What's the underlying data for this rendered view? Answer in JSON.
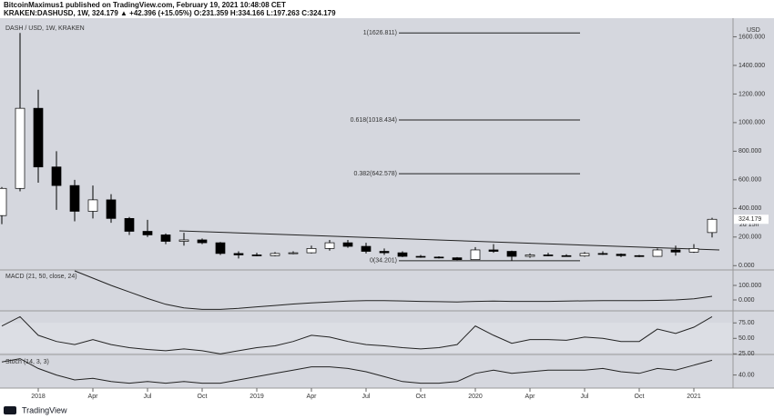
{
  "header": {
    "publisher": "BitcoinMaximus1 published on TradingView.com, February 19, 2021 10:48:08 CET",
    "symbol_line": "KRAKEN:DASHUSD, 1W, 324.179 ▲ +42.396 (+15.05%) O:231.359 H:334.166 L:197.263 C:324.179"
  },
  "footer": {
    "brand": "TradingView"
  },
  "chart_data": [
    {
      "type": "candlestick",
      "title": "DASH / USD, 1W, KRAKEN",
      "currency": "USD",
      "countdown": "2d 15h",
      "x": [
        "2017-11",
        "2017-12",
        "2018-01",
        "2018-02",
        "2018-03",
        "2018-04",
        "2018-05",
        "2018-06",
        "2018-07",
        "2018-08",
        "2018-09",
        "2018-10",
        "2018-11",
        "2018-12",
        "2019-01",
        "2019-02",
        "2019-03",
        "2019-04",
        "2019-05",
        "2019-06",
        "2019-07",
        "2019-08",
        "2019-09",
        "2019-10",
        "2019-11",
        "2019-12",
        "2020-01",
        "2020-02",
        "2020-03",
        "2020-04",
        "2020-05",
        "2020-06",
        "2020-07",
        "2020-08",
        "2020-09",
        "2020-10",
        "2020-11",
        "2020-12",
        "2021-01",
        "2021-02"
      ],
      "open": [
        350,
        540,
        1100,
        690,
        560,
        380,
        460,
        330,
        240,
        215,
        170,
        180,
        160,
        85,
        75,
        70,
        85,
        90,
        120,
        160,
        135,
        100,
        90,
        65,
        60,
        55,
        42,
        110,
        100,
        65,
        75,
        70,
        68,
        85,
        80,
        70,
        65,
        110,
        95,
        231.359
      ],
      "high": [
        550,
        1627,
        1230,
        800,
        600,
        560,
        500,
        340,
        320,
        225,
        230,
        190,
        165,
        100,
        90,
        95,
        100,
        140,
        180,
        180,
        160,
        120,
        100,
        75,
        65,
        60,
        130,
        150,
        105,
        85,
        90,
        80,
        95,
        100,
        85,
        75,
        120,
        140,
        150,
        334.166
      ],
      "low": [
        290,
        520,
        580,
        390,
        310,
        330,
        300,
        215,
        200,
        150,
        140,
        150,
        75,
        50,
        65,
        65,
        80,
        85,
        105,
        125,
        85,
        75,
        60,
        55,
        50,
        38,
        40,
        90,
        34,
        55,
        65,
        65,
        62,
        75,
        60,
        60,
        62,
        70,
        90,
        197.263
      ],
      "close": [
        540,
        1100,
        690,
        560,
        380,
        460,
        330,
        240,
        215,
        170,
        180,
        160,
        85,
        75,
        70,
        85,
        90,
        120,
        160,
        135,
        100,
        90,
        65,
        60,
        55,
        42,
        110,
        100,
        65,
        75,
        70,
        68,
        85,
        80,
        70,
        65,
        110,
        95,
        120,
        324.179
      ],
      "up_color": "#ffffff",
      "down_color": "#000000",
      "ylim": [
        -30,
        1730
      ],
      "yticks": [
        {
          "value": 0,
          "label": "0.000"
        },
        {
          "value": 200,
          "label": "200.000"
        },
        {
          "value": 400,
          "label": "400.000"
        },
        {
          "value": 600,
          "label": "600.000"
        },
        {
          "value": 800,
          "label": "800.000"
        },
        {
          "value": 1000,
          "label": "1000.000"
        },
        {
          "value": 1200,
          "label": "1200.000"
        },
        {
          "value": 1400,
          "label": "1400.000"
        },
        {
          "value": 1600,
          "label": "1600.000"
        }
      ],
      "xticks": [
        {
          "value": "2018-01",
          "label": "2018"
        },
        {
          "value": "2018-04",
          "label": "Apr"
        },
        {
          "value": "2018-07",
          "label": "Jul"
        },
        {
          "value": "2018-10",
          "label": "Oct"
        },
        {
          "value": "2019-01",
          "label": "2019"
        },
        {
          "value": "2019-04",
          "label": "Apr"
        },
        {
          "value": "2019-07",
          "label": "Jul"
        },
        {
          "value": "2019-10",
          "label": "Oct"
        },
        {
          "value": "2020-01",
          "label": "2020"
        },
        {
          "value": "2020-04",
          "label": "Apr"
        },
        {
          "value": "2020-07",
          "label": "Jul"
        },
        {
          "value": "2020-10",
          "label": "Oct"
        },
        {
          "value": "2021-01",
          "label": "2021"
        }
      ],
      "annotations": [
        {
          "label": "1(1626.811)",
          "value": 1626.811
        },
        {
          "label": "0.618(1018.434)",
          "value": 1018.434
        },
        {
          "label": "0.382(642.578)",
          "value": 642.578
        },
        {
          "label": "0(34.201)",
          "value": 34.201
        }
      ]
    },
    {
      "type": "line",
      "title": "MACD (21, 50, close, 24)",
      "color": "#222222",
      "values": [
        null,
        null,
        null,
        null,
        200,
        150,
        100,
        55,
        10,
        -30,
        -55,
        -65,
        -65,
        -58,
        -48,
        -38,
        -28,
        -20,
        -14,
        -8,
        -5,
        -5,
        -7,
        -10,
        -12,
        -14,
        -10,
        -8,
        -10,
        -10,
        -10,
        -8,
        -6,
        -5,
        -5,
        -5,
        -3,
        0,
        8,
        25
      ],
      "ylim": [
        -75,
        200
      ],
      "yticks": [
        {
          "value": 0,
          "label": "0.000"
        },
        {
          "value": 100,
          "label": "100.000"
        }
      ]
    },
    {
      "type": "line",
      "color": "#222222",
      "values": [
        70,
        85,
        55,
        45,
        40,
        48,
        40,
        35,
        32,
        30,
        33,
        30,
        25,
        30,
        35,
        38,
        45,
        55,
        52,
        45,
        40,
        38,
        35,
        33,
        35,
        40,
        70,
        55,
        42,
        48,
        48,
        47,
        52,
        50,
        45,
        45,
        65,
        58,
        68,
        85
      ],
      "ylim": [
        24,
        93
      ],
      "yticks": [
        {
          "value": 25,
          "label": "25.00"
        },
        {
          "value": 50,
          "label": "50.00"
        },
        {
          "value": 75,
          "label": "75.00"
        }
      ]
    },
    {
      "type": "line",
      "title": "Stoch (14, 3, 3)",
      "color": "#222222",
      "values": [
        80,
        90,
        60,
        40,
        25,
        30,
        20,
        15,
        20,
        15,
        20,
        15,
        15,
        25,
        35,
        45,
        55,
        65,
        65,
        60,
        50,
        35,
        20,
        15,
        15,
        20,
        45,
        55,
        45,
        50,
        55,
        55,
        55,
        60,
        50,
        45,
        60,
        55,
        70,
        85
      ],
      "ylim": [
        0,
        100
      ],
      "yticks": [
        {
          "value": 40,
          "label": "40.00"
        }
      ]
    }
  ]
}
